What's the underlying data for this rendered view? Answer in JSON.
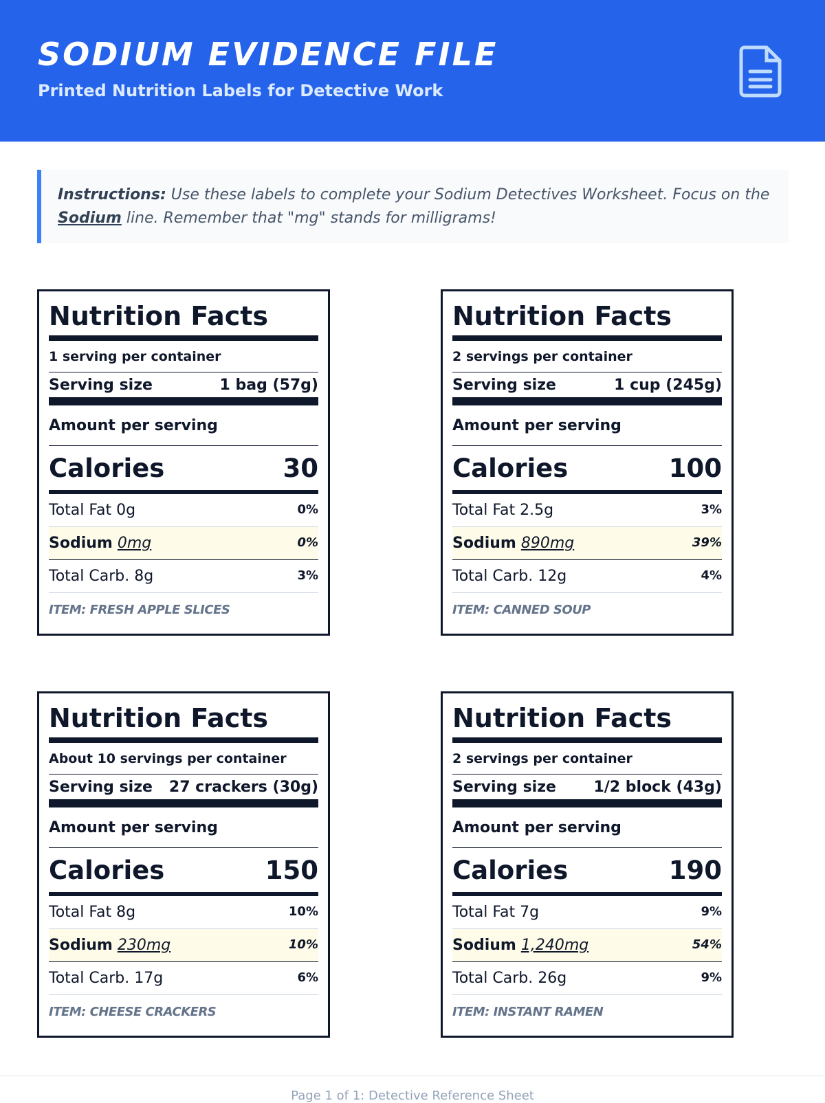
{
  "header": {
    "title": "SODIUM EVIDENCE FILE",
    "subtitle": "Printed Nutrition Labels for Detective Work"
  },
  "instructions": {
    "label": "Instructions:",
    "text_before": "Use these labels to complete your Sodium Detectives Worksheet. Focus on the",
    "keyword": "Sodium",
    "text_after": "line. Remember that \"mg\" stands for milligrams!"
  },
  "labels": [
    {
      "heading": "Nutrition Facts",
      "servings": "1 serving per container",
      "serving_size_label": "Serving size",
      "serving_size": "1 bag (57g)",
      "amount_label": "Amount per serving",
      "calories_label": "Calories",
      "calories": "30",
      "rows": [
        {
          "name": "Total Fat 0g",
          "dv": "0%"
        },
        {
          "name": "Sodium",
          "amount": "0mg",
          "dv": "0%"
        },
        {
          "name": "Total Carb. 8g",
          "dv": "3%"
        }
      ],
      "item": "ITEM: FRESH APPLE SLICES"
    },
    {
      "heading": "Nutrition Facts",
      "servings": "2 servings per container",
      "serving_size_label": "Serving size",
      "serving_size": "1 cup (245g)",
      "amount_label": "Amount per serving",
      "calories_label": "Calories",
      "calories": "100",
      "rows": [
        {
          "name": "Total Fat 2.5g",
          "dv": "3%"
        },
        {
          "name": "Sodium",
          "amount": "890mg",
          "dv": "39%"
        },
        {
          "name": "Total Carb. 12g",
          "dv": "4%"
        }
      ],
      "item": "ITEM: CANNED SOUP"
    },
    {
      "heading": "Nutrition Facts",
      "servings": "About 10 servings per container",
      "serving_size_label": "Serving size",
      "serving_size": "27 crackers (30g)",
      "amount_label": "Amount per serving",
      "calories_label": "Calories",
      "calories": "150",
      "rows": [
        {
          "name": "Total Fat 8g",
          "dv": "10%"
        },
        {
          "name": "Sodium",
          "amount": "230mg",
          "dv": "10%"
        },
        {
          "name": "Total Carb. 17g",
          "dv": "6%"
        }
      ],
      "item": "ITEM: CHEESE CRACKERS"
    },
    {
      "heading": "Nutrition Facts",
      "servings": "2 servings per container",
      "serving_size_label": "Serving size",
      "serving_size": "1/2 block (43g)",
      "amount_label": "Amount per serving",
      "calories_label": "Calories",
      "calories": "190",
      "rows": [
        {
          "name": "Total Fat 7g",
          "dv": "9%"
        },
        {
          "name": "Sodium",
          "amount": "1,240mg",
          "dv": "54%"
        },
        {
          "name": "Total Carb. 26g",
          "dv": "9%"
        }
      ],
      "item": "ITEM: INSTANT RAMEN"
    }
  ],
  "footer": "Page 1 of 1: Detective Reference Sheet"
}
